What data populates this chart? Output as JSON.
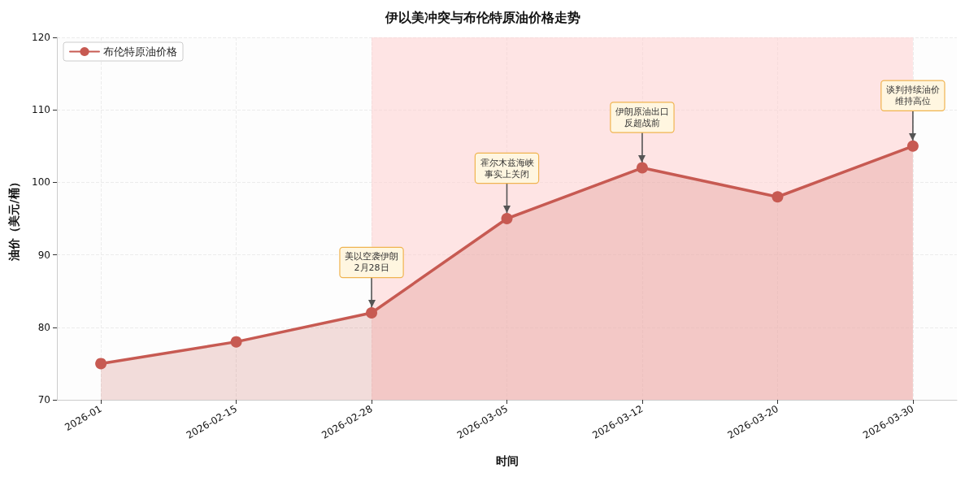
{
  "chart_data": {
    "type": "area",
    "title": "伊以美冲突与布伦特原油价格走势",
    "xlabel": "时间",
    "ylabel": "油价（美元/桶）",
    "categories": [
      "2026-01",
      "2026-02-15",
      "2026-02-28",
      "2026-03-05",
      "2026-03-12",
      "2026-03-20",
      "2026-03-30"
    ],
    "series": [
      {
        "name": "布伦特原油价格",
        "color": "#c75a52",
        "values": [
          75,
          78,
          82,
          95,
          102,
          98,
          105
        ]
      }
    ],
    "ylim": [
      70,
      120
    ],
    "yticks": [
      70,
      80,
      90,
      100,
      110,
      120
    ],
    "bands": [
      {
        "axis": "x",
        "from": "2026-02-28",
        "to": "2026-03-30",
        "color": "#ffcccc"
      }
    ],
    "annotations": [
      {
        "text": "美以空袭伊朗\n2月28日",
        "x": "2026-02-28",
        "y": 82
      },
      {
        "text": "霍尔木兹海峡事实上关闭",
        "x": "2026-03-05",
        "y": 95
      },
      {
        "text": "伊朗原油出口反超战前",
        "x": "2026-03-12",
        "y": 102
      },
      {
        "text": "谈判持续油价维持高位",
        "x": "2026-03-30",
        "y": 105
      }
    ],
    "marker": "circle",
    "grid": true,
    "legend": "top left"
  }
}
